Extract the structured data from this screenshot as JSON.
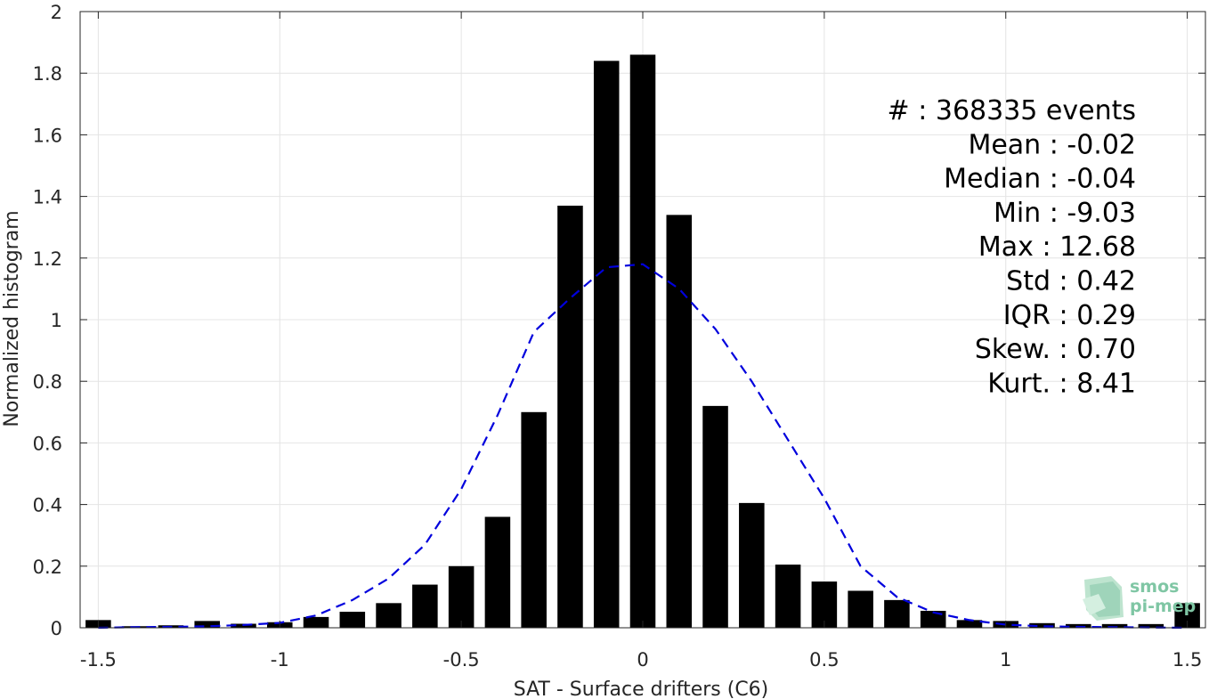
{
  "chart_data": {
    "type": "bar",
    "xlabel": "SAT - Surface drifters (C6)",
    "ylabel": "Normalized histogram",
    "xlim": [
      -1.55,
      1.55
    ],
    "ylim": [
      0,
      2
    ],
    "xticks": [
      -1.5,
      -1,
      -0.5,
      0,
      0.5,
      1,
      1.5
    ],
    "xtick_labels": [
      "-1.5",
      "-1",
      "-0.5",
      "0",
      "0.5",
      "1",
      "1.5"
    ],
    "yticks": [
      0,
      0.2,
      0.4,
      0.6,
      0.8,
      1,
      1.2,
      1.4,
      1.6,
      1.8,
      2
    ],
    "ytick_labels": [
      "0",
      "0.2",
      "0.4",
      "0.6",
      "0.8",
      "1",
      "1.2",
      "1.4",
      "1.6",
      "1.8",
      "2"
    ],
    "grid": true,
    "bar_color": "#000000",
    "bars": {
      "x": [
        -1.5,
        -1.4,
        -1.3,
        -1.2,
        -1.1,
        -1.0,
        -0.9,
        -0.8,
        -0.7,
        -0.6,
        -0.5,
        -0.4,
        -0.3,
        -0.2,
        -0.1,
        0.0,
        0.1,
        0.2,
        0.3,
        0.4,
        0.5,
        0.6,
        0.7,
        0.8,
        0.9,
        1.0,
        1.1,
        1.2,
        1.3,
        1.4,
        1.5
      ],
      "values": [
        0.025,
        0.005,
        0.008,
        0.022,
        0.013,
        0.018,
        0.035,
        0.052,
        0.08,
        0.14,
        0.2,
        0.36,
        0.7,
        1.37,
        1.84,
        1.86,
        1.34,
        0.72,
        0.405,
        0.205,
        0.15,
        0.12,
        0.09,
        0.055,
        0.025,
        0.022,
        0.015,
        0.012,
        0.012,
        0.012,
        0.08
      ],
      "width": 0.07
    },
    "fit_curve": {
      "style": "dashed",
      "color": "#0000dd",
      "x": [
        -1.5,
        -1.4,
        -1.3,
        -1.2,
        -1.1,
        -1.0,
        -0.9,
        -0.8,
        -0.7,
        -0.6,
        -0.5,
        -0.4,
        -0.3,
        -0.2,
        -0.1,
        0.0,
        0.1,
        0.2,
        0.3,
        0.4,
        0.5,
        0.6,
        0.7,
        0.8,
        0.9,
        1.0,
        1.1,
        1.2,
        1.3,
        1.4,
        1.5
      ],
      "y": [
        0.0,
        0.002,
        0.003,
        0.005,
        0.009,
        0.016,
        0.04,
        0.09,
        0.16,
        0.27,
        0.45,
        0.69,
        0.96,
        1.07,
        1.17,
        1.18,
        1.1,
        0.97,
        0.8,
        0.61,
        0.42,
        0.2,
        0.1,
        0.05,
        0.025,
        0.01,
        0.005,
        0.003,
        0.002,
        0.001,
        0.0
      ]
    },
    "stats": [
      "#  : 368335 events",
      "Mean : -0.02",
      "Median : -0.04",
      "Min : -9.03",
      "Max : 12.68",
      "Std : 0.42",
      "IQR : 0.29",
      "Skew. : 0.70",
      "Kurt. : 8.41"
    ]
  },
  "logo": {
    "line1": "smos",
    "line2": "pi-mep",
    "color": "#7fc6a4"
  }
}
